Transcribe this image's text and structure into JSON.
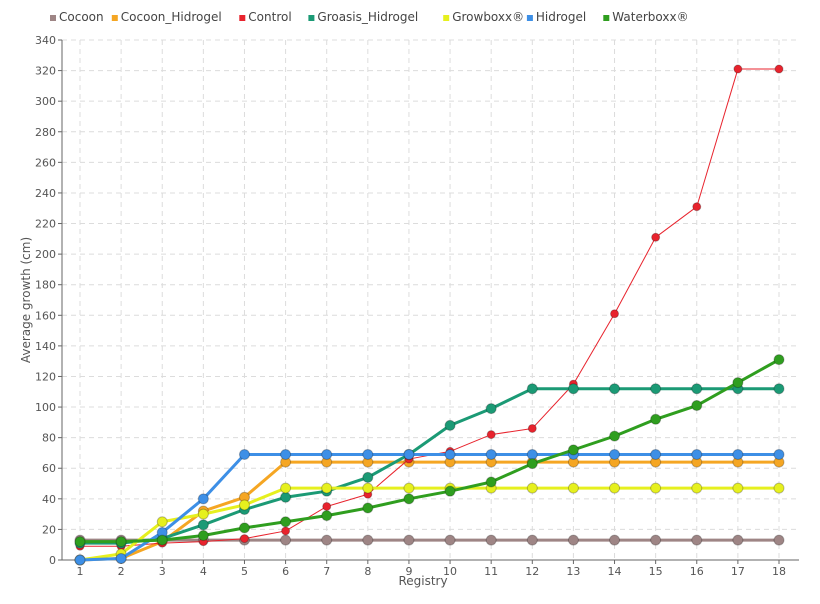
{
  "chart_data": {
    "type": "line",
    "title": "",
    "xlabel": "Registry",
    "ylabel": "Average growth (cm)",
    "x": [
      1,
      2,
      3,
      4,
      5,
      6,
      7,
      8,
      9,
      10,
      11,
      12,
      13,
      14,
      15,
      16,
      17,
      18
    ],
    "ylim": [
      0,
      340
    ],
    "yticks": [
      0,
      20,
      40,
      60,
      80,
      100,
      120,
      140,
      160,
      180,
      200,
      220,
      240,
      260,
      280,
      300,
      320,
      340
    ],
    "grid": true,
    "legend_position": "top",
    "series": [
      {
        "name": "Cocoon",
        "color": "#9e8585",
        "values": [
          13,
          13,
          13,
          13,
          13,
          13,
          13,
          13,
          13,
          13,
          13,
          13,
          13,
          13,
          13,
          13,
          13,
          13
        ]
      },
      {
        "name": "Cocoon_Hidrogel",
        "color": "#f5a623",
        "values": [
          0,
          1,
          12,
          32,
          41,
          64,
          64,
          64,
          64,
          64,
          64,
          64,
          64,
          64,
          64,
          64,
          64,
          64
        ]
      },
      {
        "name": "Control",
        "color": "#e8232d",
        "values": [
          9,
          9,
          11,
          12,
          14,
          19,
          35,
          43,
          66,
          71,
          82,
          86,
          115,
          161,
          211,
          231,
          321,
          321
        ]
      },
      {
        "name": "Groasis_Hidrogel",
        "color": "#1b9a75",
        "values": [
          11,
          11,
          14,
          23,
          33,
          41,
          45,
          54,
          69,
          88,
          99,
          112,
          112,
          112,
          112,
          112,
          112,
          112
        ]
      },
      {
        "name": "Growboxx®",
        "color": "#e6f01e",
        "values": [
          0,
          4,
          25,
          30,
          36,
          47,
          47,
          47,
          47,
          47,
          47,
          47,
          47,
          47,
          47,
          47,
          47,
          47
        ]
      },
      {
        "name": "Hidrogel",
        "color": "#3d8fe6",
        "values": [
          0,
          1,
          18,
          40,
          69,
          69,
          69,
          69,
          69,
          69,
          69,
          69,
          69,
          69,
          69,
          69,
          69,
          69
        ]
      },
      {
        "name": "Waterboxx®",
        "color": "#2f9e1f",
        "values": [
          12,
          12,
          13,
          16,
          21,
          25,
          29,
          34,
          40,
          45,
          51,
          63,
          72,
          81,
          92,
          101,
          116,
          131
        ]
      }
    ]
  }
}
